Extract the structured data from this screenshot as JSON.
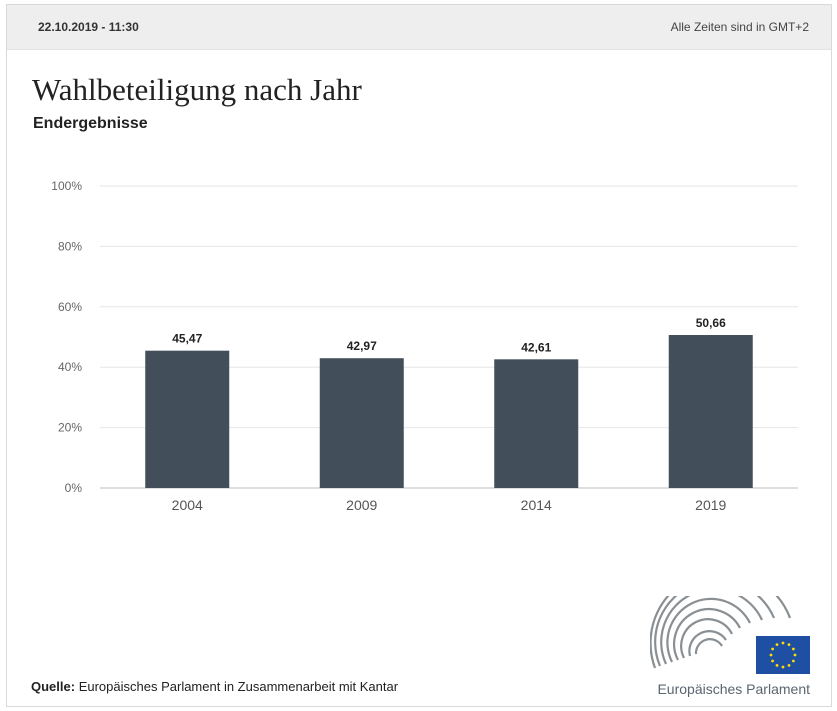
{
  "header": {
    "timestamp": "22.10.2019 - 11:30",
    "timezone_note": "Alle Zeiten sind in GMT+2"
  },
  "chart_data": {
    "type": "bar",
    "title": "Wahlbeteiligung nach Jahr",
    "subtitle": "Endergebnisse",
    "categories": [
      "2004",
      "2009",
      "2014",
      "2019"
    ],
    "values": [
      45.47,
      42.97,
      42.61,
      50.66
    ],
    "value_labels": [
      "45,47",
      "42,97",
      "42,61",
      "50,66"
    ],
    "ylim": [
      0,
      100
    ],
    "yticks": [
      0,
      20,
      40,
      60,
      80,
      100
    ],
    "ytick_labels": [
      "0%",
      "20%",
      "40%",
      "60%",
      "80%",
      "100%"
    ],
    "grid": true,
    "bar_color": "#424f5a"
  },
  "footer": {
    "source_label": "Quelle:",
    "source_text": "Europäisches Parlament in Zusammenarbeit mit Kantar",
    "logo_text": "Europäisches Parlament"
  }
}
